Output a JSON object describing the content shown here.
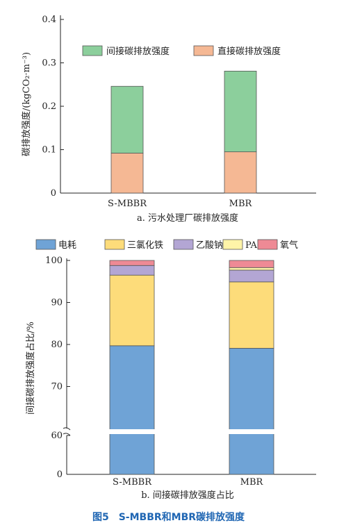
{
  "figure_caption": "图5　S-MBBR和MBR碳排放强度",
  "chart_data": [
    {
      "type": "bar",
      "stacked": true,
      "title": "",
      "subtitle": "a. 污水处理厂碳排放强度",
      "categories": [
        "S-MBBR",
        "MBR"
      ],
      "ylabel": "碳排放强度/(kgCO₂·m⁻³)",
      "xlabel": "",
      "ylim": [
        0,
        0.4
      ],
      "yticks": [
        "0",
        "0.1",
        "0.2",
        "0.3",
        "0.4"
      ],
      "series": [
        {
          "name": "直接碳排放强度",
          "color": "#f5b894",
          "values": [
            0.092,
            0.095
          ]
        },
        {
          "name": "间接碳排放强度",
          "color": "#8ccf9c",
          "values": [
            0.154,
            0.186
          ]
        }
      ],
      "legend_order": [
        "间接碳排放强度",
        "直接碳排放强度"
      ],
      "legend_position": "top-right",
      "grid": false
    },
    {
      "type": "bar",
      "stacked": true,
      "title": "",
      "subtitle": "b. 间接碳排放强度占比",
      "categories": [
        "S-MBBR",
        "MBR"
      ],
      "ylabel": "间接碳排放强度占比/%",
      "xlabel": "",
      "ylim": [
        0,
        100
      ],
      "axis_break": [
        0,
        60
      ],
      "yticks": [
        "0",
        "60",
        "70",
        "80",
        "90",
        "100"
      ],
      "series": [
        {
          "name": "电耗",
          "color": "#6fa3d6",
          "values": [
            79.7,
            79.1
          ]
        },
        {
          "name": "三氯化铁",
          "color": "#fddc7a",
          "values": [
            16.8,
            15.8
          ]
        },
        {
          "name": "乙酸钠",
          "color": "#b3a6d4",
          "values": [
            2.3,
            2.8
          ]
        },
        {
          "name": "PAM",
          "color": "#fff4a8",
          "values": [
            0.0,
            0.6
          ]
        },
        {
          "name": "氧气",
          "color": "#ee8a95",
          "values": [
            1.2,
            1.7
          ]
        }
      ],
      "legend_position": "top",
      "grid": false
    }
  ]
}
